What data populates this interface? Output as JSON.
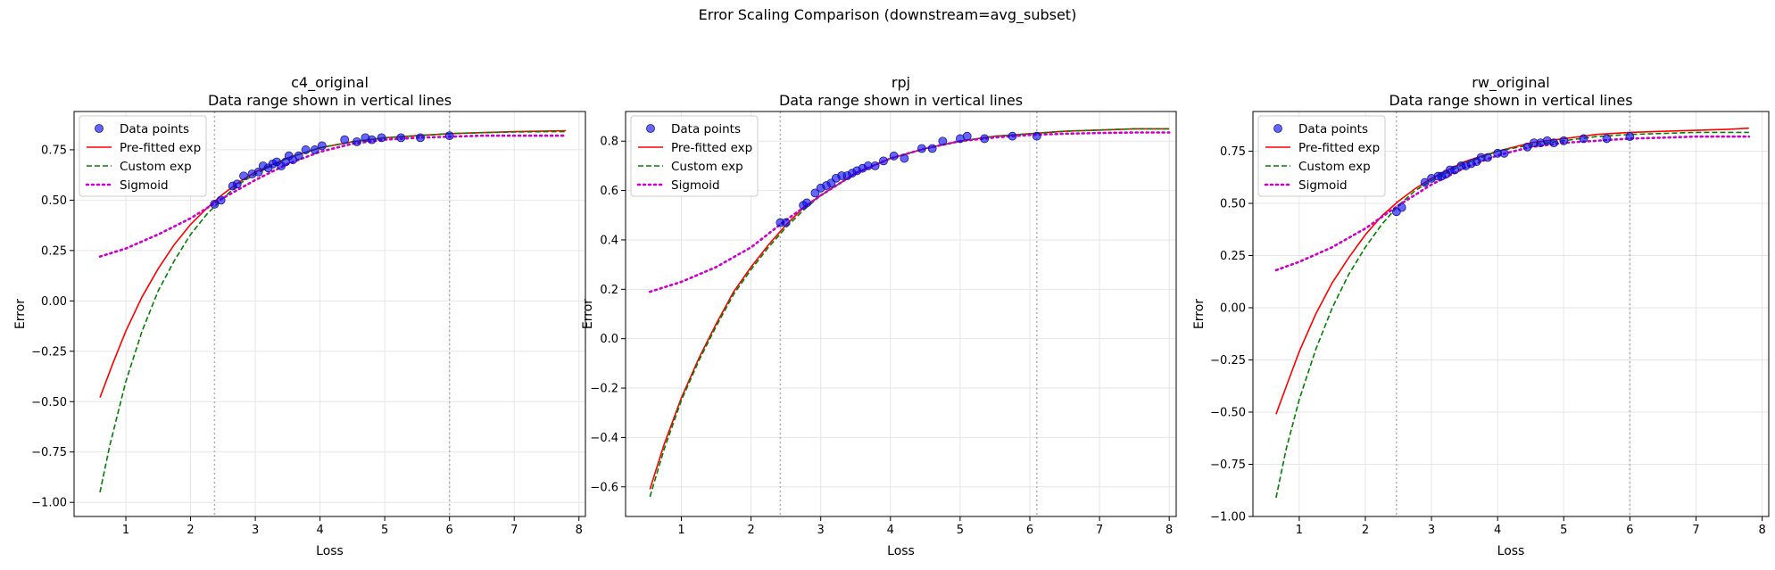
{
  "figure": {
    "suptitle": "Error Scaling Comparison (downstream=avg_subset)"
  },
  "colors": {
    "data_points": "#0000ff",
    "pre_fitted": "#ff0000",
    "custom": "#008000",
    "sigmoid": "#cc00cc",
    "vline": "#b0b0b0",
    "grid": "#e6e6e6"
  },
  "chart_data": [
    {
      "type": "scatter",
      "title": "c4_original\nData range shown in vertical lines",
      "xlabel": "Loss",
      "ylabel": "Error",
      "xlim": [
        0.2,
        8.1
      ],
      "ylim": [
        -1.07,
        0.94
      ],
      "xticks": [
        1,
        2,
        3,
        4,
        5,
        6,
        7,
        8
      ],
      "yticks": [
        -1.0,
        -0.75,
        -0.5,
        -0.25,
        0.0,
        0.25,
        0.5,
        0.75
      ],
      "ytick_labels": [
        "−1.00",
        "−0.75",
        "−0.50",
        "−0.25",
        "0.00",
        "0.25",
        "0.50",
        "0.75"
      ],
      "grid": true,
      "legend_position": "upper-left",
      "legend": [
        "Data points",
        "Pre-fitted exp",
        "Custom exp",
        "Sigmoid"
      ],
      "vlines": [
        2.37,
        6.0
      ],
      "data_points": {
        "x": [
          2.37,
          2.47,
          2.65,
          2.72,
          2.82,
          2.95,
          3.05,
          3.12,
          3.2,
          3.27,
          3.33,
          3.4,
          3.47,
          3.52,
          3.58,
          3.67,
          3.78,
          3.92,
          4.03,
          4.38,
          4.57,
          4.7,
          4.8,
          4.95,
          5.25,
          5.55,
          6.0
        ],
        "y": [
          0.48,
          0.5,
          0.57,
          0.58,
          0.62,
          0.63,
          0.64,
          0.67,
          0.66,
          0.68,
          0.69,
          0.67,
          0.69,
          0.72,
          0.7,
          0.72,
          0.75,
          0.75,
          0.77,
          0.8,
          0.79,
          0.81,
          0.8,
          0.81,
          0.81,
          0.81,
          0.82
        ]
      },
      "series": [
        {
          "name": "Pre-fitted exp",
          "style": "solid",
          "x": [
            0.6,
            0.8,
            1.0,
            1.25,
            1.5,
            1.75,
            2.0,
            2.25,
            2.5,
            2.75,
            3.0,
            3.5,
            4.0,
            4.5,
            5.0,
            5.5,
            6.0,
            6.5,
            7.0,
            7.5,
            7.8
          ],
          "y": [
            -0.48,
            -0.31,
            -0.15,
            0.02,
            0.16,
            0.28,
            0.38,
            0.46,
            0.53,
            0.59,
            0.64,
            0.71,
            0.76,
            0.79,
            0.81,
            0.82,
            0.83,
            0.835,
            0.84,
            0.843,
            0.845
          ]
        },
        {
          "name": "Custom exp",
          "style": "dashed",
          "x": [
            0.6,
            0.75,
            1.0,
            1.25,
            1.5,
            1.75,
            2.0,
            2.25,
            2.5,
            2.75,
            3.0,
            3.5,
            4.0,
            4.5,
            5.0,
            5.5,
            6.0,
            6.5,
            7.0,
            7.5,
            7.8
          ],
          "y": [
            -0.95,
            -0.72,
            -0.4,
            -0.15,
            0.05,
            0.2,
            0.33,
            0.43,
            0.51,
            0.58,
            0.63,
            0.71,
            0.76,
            0.79,
            0.81,
            0.82,
            0.83,
            0.835,
            0.838,
            0.84,
            0.84
          ]
        },
        {
          "name": "Sigmoid",
          "style": "dotted",
          "x": [
            0.6,
            1.0,
            1.5,
            2.0,
            2.5,
            3.0,
            3.5,
            4.0,
            4.5,
            5.0,
            5.5,
            6.0,
            6.5,
            7.0,
            7.5,
            7.8
          ],
          "y": [
            0.22,
            0.26,
            0.33,
            0.41,
            0.51,
            0.6,
            0.68,
            0.74,
            0.78,
            0.8,
            0.81,
            0.815,
            0.82,
            0.82,
            0.82,
            0.82
          ]
        }
      ]
    },
    {
      "type": "scatter",
      "title": "rpj\nData range shown in vertical lines",
      "xlabel": "Loss",
      "ylabel": "Error",
      "xlim": [
        0.2,
        8.1
      ],
      "ylim": [
        -0.72,
        0.92
      ],
      "xticks": [
        1,
        2,
        3,
        4,
        5,
        6,
        7,
        8
      ],
      "yticks": [
        -0.6,
        -0.4,
        -0.2,
        0.0,
        0.2,
        0.4,
        0.6,
        0.8
      ],
      "ytick_labels": [
        "−0.6",
        "−0.4",
        "−0.2",
        "0.0",
        "0.2",
        "0.4",
        "0.6",
        "0.8"
      ],
      "grid": true,
      "legend_position": "upper-left",
      "legend": [
        "Data points",
        "Pre-fitted exp",
        "Custom exp",
        "Sigmoid"
      ],
      "vlines": [
        2.42,
        6.1
      ],
      "data_points": {
        "x": [
          2.42,
          2.5,
          2.75,
          2.8,
          2.92,
          3.0,
          3.08,
          3.15,
          3.22,
          3.3,
          3.38,
          3.45,
          3.52,
          3.6,
          3.68,
          3.78,
          3.9,
          4.05,
          4.2,
          4.45,
          4.6,
          4.75,
          5.0,
          5.1,
          5.35,
          5.75,
          6.1
        ],
        "y": [
          0.47,
          0.47,
          0.54,
          0.55,
          0.59,
          0.61,
          0.62,
          0.63,
          0.65,
          0.66,
          0.66,
          0.67,
          0.68,
          0.69,
          0.7,
          0.7,
          0.72,
          0.74,
          0.73,
          0.77,
          0.77,
          0.8,
          0.81,
          0.82,
          0.81,
          0.82,
          0.82
        ]
      },
      "series": [
        {
          "name": "Pre-fitted exp",
          "style": "solid",
          "x": [
            0.55,
            0.75,
            1.0,
            1.25,
            1.5,
            1.75,
            2.0,
            2.25,
            2.5,
            2.75,
            3.0,
            3.5,
            4.0,
            4.5,
            5.0,
            5.5,
            6.0,
            6.5,
            7.0,
            7.5,
            8.0
          ],
          "y": [
            -0.61,
            -0.43,
            -0.24,
            -0.08,
            0.06,
            0.19,
            0.29,
            0.38,
            0.46,
            0.53,
            0.58,
            0.67,
            0.73,
            0.77,
            0.8,
            0.82,
            0.83,
            0.84,
            0.845,
            0.85,
            0.85
          ]
        },
        {
          "name": "Custom exp",
          "style": "dashed",
          "x": [
            0.55,
            0.75,
            1.0,
            1.25,
            1.5,
            1.75,
            2.0,
            2.25,
            2.5,
            2.75,
            3.0,
            3.5,
            4.0,
            4.5,
            5.0,
            5.5,
            6.0,
            6.5,
            7.0,
            7.5,
            8.0
          ],
          "y": [
            -0.64,
            -0.45,
            -0.25,
            -0.09,
            0.05,
            0.18,
            0.28,
            0.37,
            0.45,
            0.52,
            0.58,
            0.67,
            0.73,
            0.77,
            0.8,
            0.82,
            0.83,
            0.84,
            0.845,
            0.85,
            0.85
          ]
        },
        {
          "name": "Sigmoid",
          "style": "dotted",
          "x": [
            0.55,
            1.0,
            1.5,
            2.0,
            2.5,
            3.0,
            3.5,
            4.0,
            4.5,
            5.0,
            5.5,
            6.0,
            6.5,
            7.0,
            7.5,
            8.0
          ],
          "y": [
            0.19,
            0.23,
            0.29,
            0.37,
            0.48,
            0.58,
            0.67,
            0.73,
            0.77,
            0.8,
            0.815,
            0.825,
            0.83,
            0.833,
            0.835,
            0.835
          ]
        }
      ]
    },
    {
      "type": "scatter",
      "title": "rw_original\nData range shown in vertical lines",
      "xlabel": "Loss",
      "ylabel": "Error",
      "xlim": [
        0.3,
        8.1
      ],
      "ylim": [
        -1.0,
        0.94
      ],
      "xticks": [
        1,
        2,
        3,
        4,
        5,
        6,
        7,
        8
      ],
      "yticks": [
        -1.0,
        -0.75,
        -0.5,
        -0.25,
        0.0,
        0.25,
        0.5,
        0.75
      ],
      "ytick_labels": [
        "−1.00",
        "−0.75",
        "−0.50",
        "−0.25",
        "0.00",
        "0.25",
        "0.50",
        "0.75"
      ],
      "grid": true,
      "legend_position": "upper-left",
      "legend": [
        "Data points",
        "Pre-fitted exp",
        "Custom exp",
        "Sigmoid"
      ],
      "vlines": [
        2.47,
        6.0
      ],
      "data_points": {
        "x": [
          2.47,
          2.55,
          2.9,
          3.0,
          3.1,
          3.15,
          3.22,
          3.28,
          3.35,
          3.45,
          3.52,
          3.6,
          3.68,
          3.75,
          3.85,
          4.0,
          4.1,
          4.45,
          4.55,
          4.65,
          4.75,
          4.85,
          5.0,
          5.3,
          5.65,
          6.0
        ],
        "y": [
          0.46,
          0.48,
          0.6,
          0.62,
          0.63,
          0.63,
          0.64,
          0.66,
          0.66,
          0.68,
          0.68,
          0.69,
          0.7,
          0.72,
          0.72,
          0.74,
          0.74,
          0.77,
          0.79,
          0.79,
          0.8,
          0.79,
          0.8,
          0.81,
          0.81,
          0.82
        ]
      },
      "series": [
        {
          "name": "Pre-fitted exp",
          "style": "solid",
          "x": [
            0.65,
            0.8,
            1.0,
            1.25,
            1.5,
            1.75,
            2.0,
            2.25,
            2.5,
            2.75,
            3.0,
            3.5,
            4.0,
            4.5,
            5.0,
            5.5,
            6.0,
            6.5,
            7.0,
            7.5,
            7.8
          ],
          "y": [
            -0.51,
            -0.38,
            -0.21,
            -0.03,
            0.12,
            0.24,
            0.35,
            0.44,
            0.51,
            0.57,
            0.62,
            0.7,
            0.75,
            0.79,
            0.81,
            0.83,
            0.84,
            0.845,
            0.85,
            0.855,
            0.86
          ]
        },
        {
          "name": "Custom exp",
          "style": "dashed",
          "x": [
            0.65,
            0.8,
            1.0,
            1.25,
            1.5,
            1.75,
            2.0,
            2.25,
            2.5,
            2.75,
            3.0,
            3.5,
            4.0,
            4.5,
            5.0,
            5.5,
            6.0,
            6.5,
            7.0,
            7.5,
            7.8
          ],
          "y": [
            -0.91,
            -0.68,
            -0.44,
            -0.2,
            0.0,
            0.16,
            0.29,
            0.4,
            0.49,
            0.56,
            0.61,
            0.69,
            0.75,
            0.78,
            0.8,
            0.82,
            0.83,
            0.835,
            0.84,
            0.84,
            0.84
          ]
        },
        {
          "name": "Sigmoid",
          "style": "dotted",
          "x": [
            0.65,
            1.0,
            1.5,
            2.0,
            2.5,
            3.0,
            3.5,
            4.0,
            4.5,
            5.0,
            5.5,
            6.0,
            6.5,
            7.0,
            7.5,
            7.8
          ],
          "y": [
            0.18,
            0.22,
            0.29,
            0.38,
            0.49,
            0.59,
            0.67,
            0.73,
            0.77,
            0.79,
            0.8,
            0.81,
            0.815,
            0.82,
            0.82,
            0.82
          ]
        }
      ]
    }
  ]
}
